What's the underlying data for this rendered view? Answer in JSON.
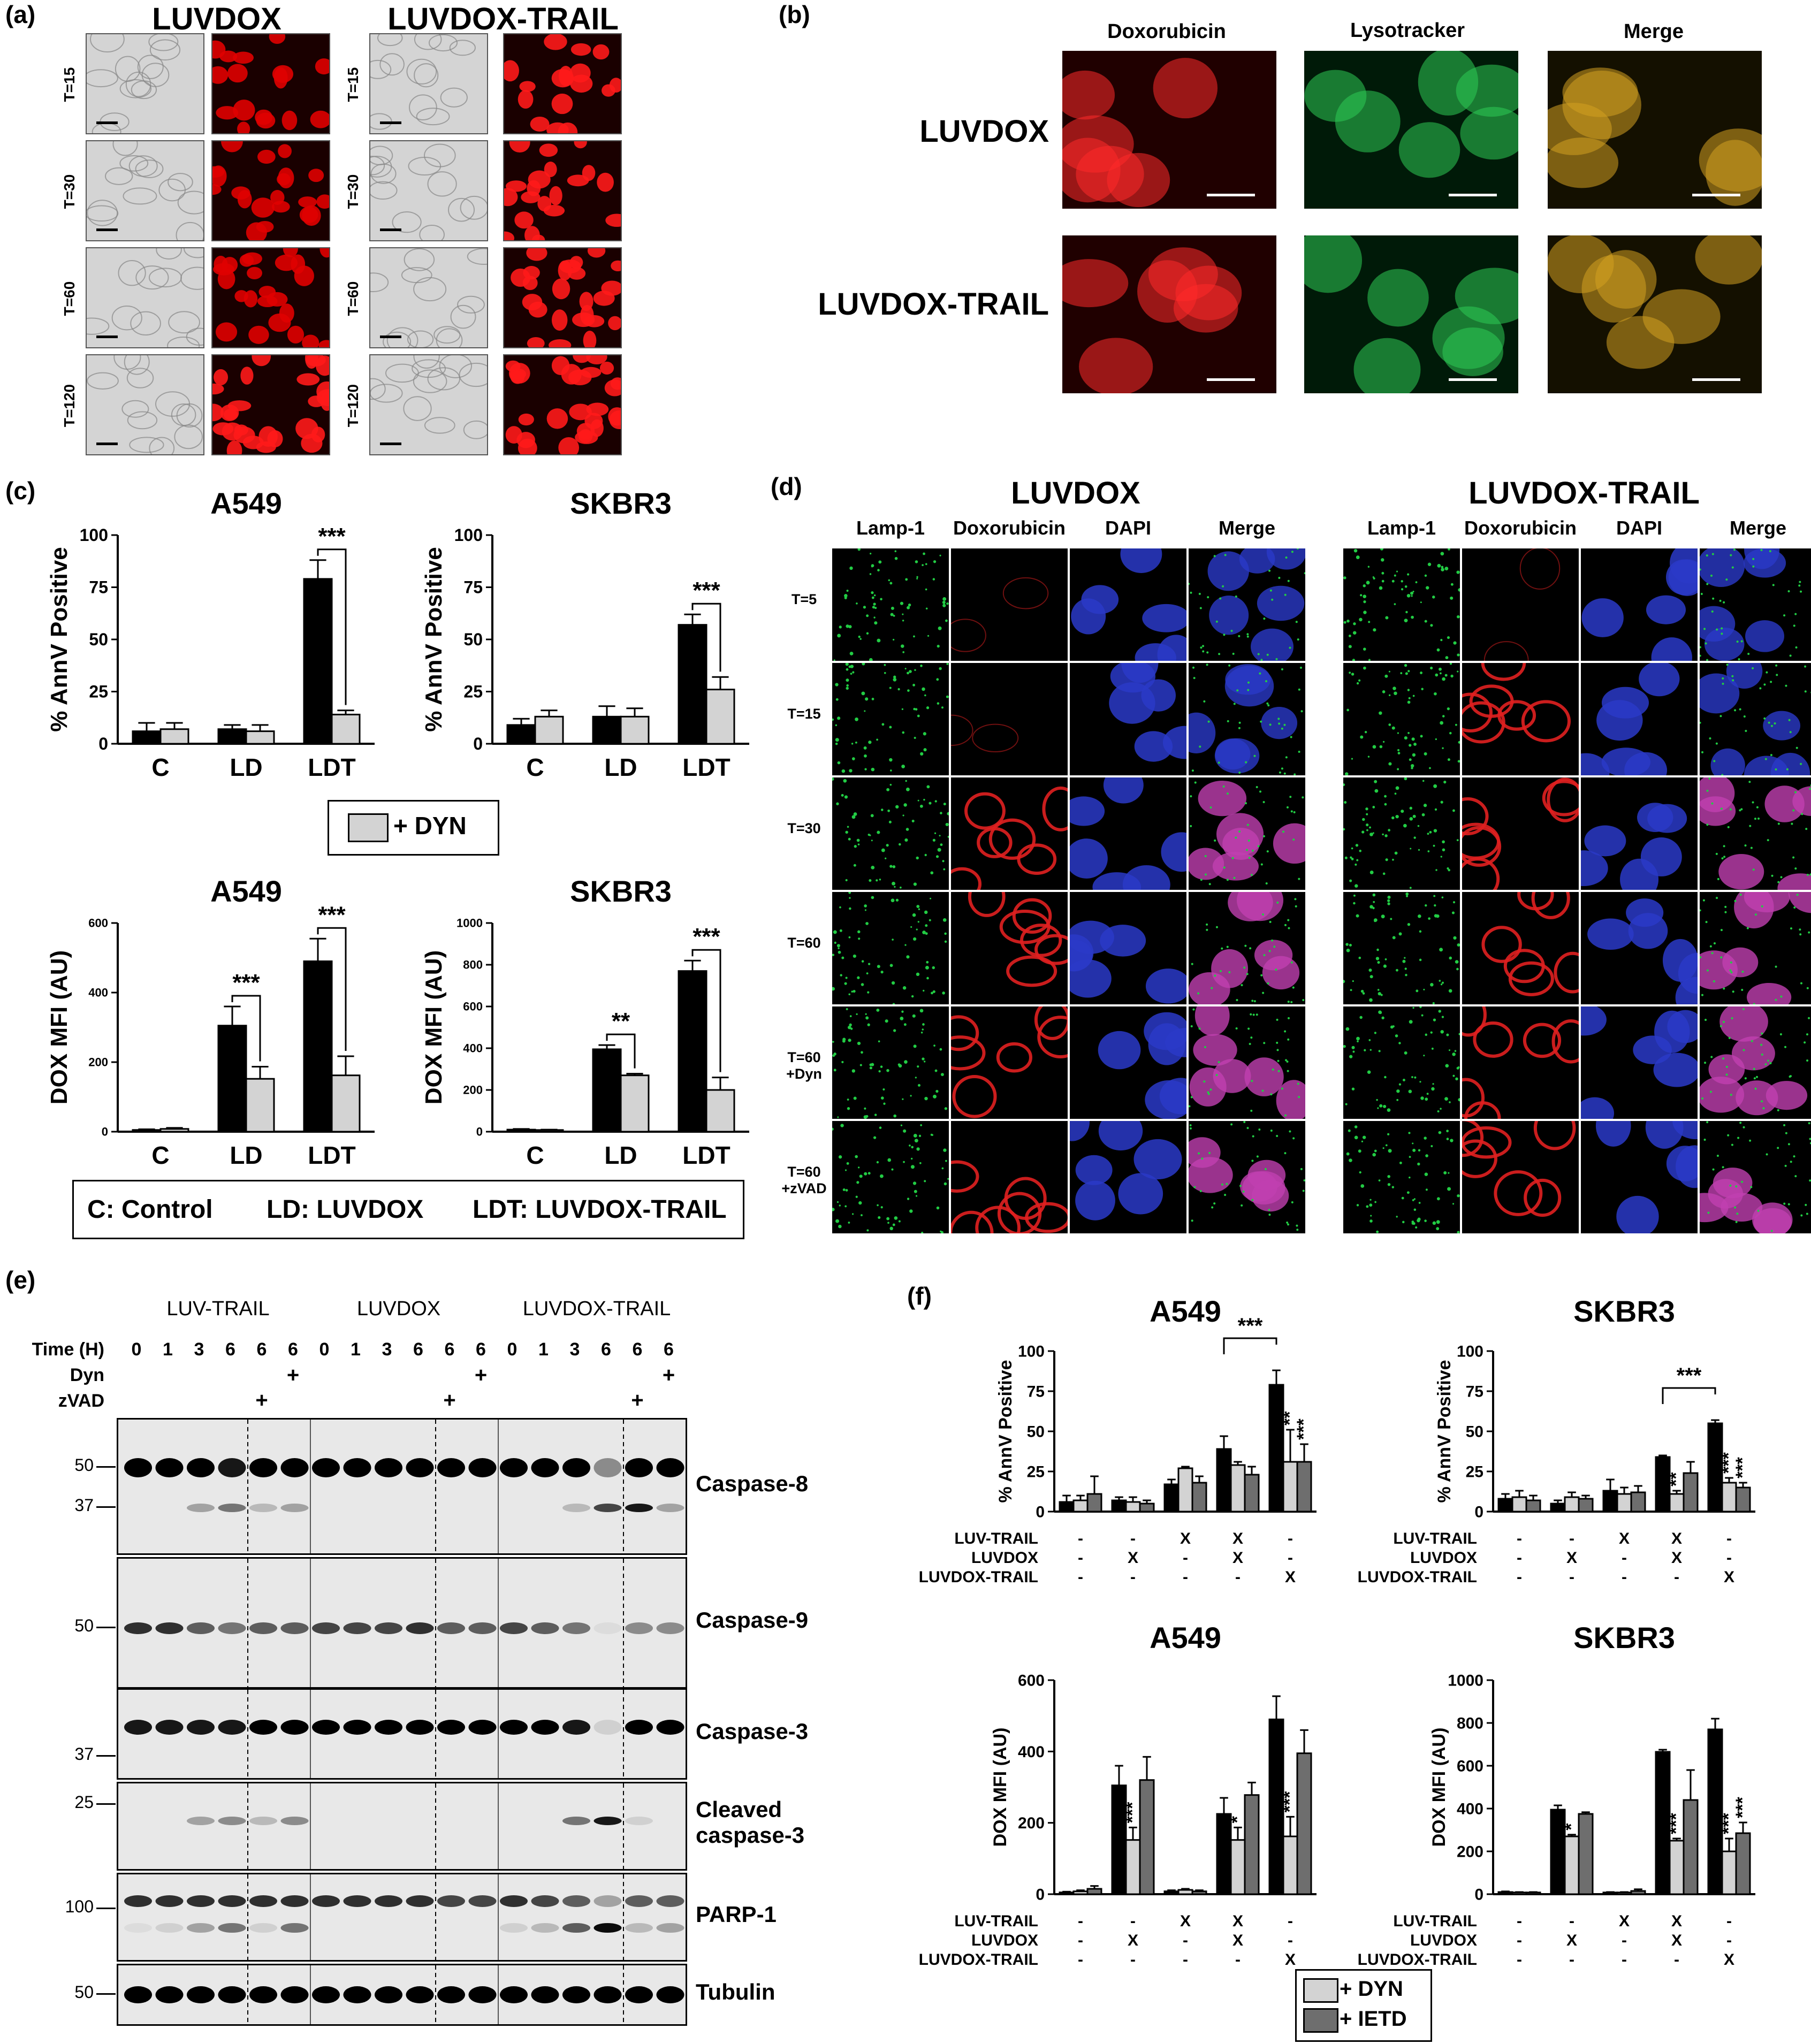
{
  "panels": {
    "a": {
      "label": "(a)",
      "groups": [
        "LUVDOX",
        "LUVDOX-TRAIL"
      ],
      "timepoints": [
        "T=15",
        "T=30",
        "T=60",
        "T=120"
      ]
    },
    "b": {
      "label": "(b)",
      "columns": [
        "Doxorubicin",
        "Lysotracker",
        "Merge"
      ],
      "rows": [
        "LUVDOX",
        "LUVDOX-TRAIL"
      ]
    },
    "c": {
      "label": "(c)",
      "legend": "+ DYN",
      "abbrev": {
        "c": "C: Control",
        "ld": "LD: LUVDOX",
        "ldt": "LDT: LUVDOX-TRAIL"
      }
    },
    "d": {
      "label": "(d)",
      "groups": [
        "LUVDOX",
        "LUVDOX-TRAIL"
      ],
      "columns": [
        "Lamp-1",
        "Doxorubicin",
        "DAPI",
        "Merge"
      ],
      "rows": [
        "T=5",
        "T=15",
        "T=30",
        "T=60",
        "T=60\n+Dyn",
        "T=60\n+zVAD"
      ]
    },
    "e": {
      "label": "(e)",
      "groups": [
        "LUV-TRAIL",
        "LUVDOX",
        "LUVDOX-TRAIL"
      ],
      "row_labels": [
        "Time (H)",
        "Dyn",
        "zVAD"
      ],
      "times": [
        "0",
        "1",
        "3",
        "6",
        "6",
        "6"
      ],
      "dyn": [
        "",
        "",
        "",
        "",
        "",
        "+"
      ],
      "zvad": [
        "",
        "",
        "",
        "",
        "+",
        ""
      ],
      "blots": [
        {
          "name": "Caspase-8",
          "markers": [
            "50",
            "37"
          ]
        },
        {
          "name": "Caspase-9",
          "markers": [
            "50"
          ]
        },
        {
          "name": "Caspase-3",
          "markers": [
            "37"
          ]
        },
        {
          "name": "Cleaved\ncaspase-3",
          "markers": [
            "25"
          ]
        },
        {
          "name": "PARP-1",
          "markers": [
            "100"
          ]
        },
        {
          "name": "Tubulin",
          "markers": [
            "50"
          ]
        }
      ]
    },
    "f": {
      "label": "(f)",
      "legend": [
        "+ DYN",
        "+ IETD"
      ],
      "cond_labels": [
        "LUV-TRAIL",
        "LUVDOX",
        "LUVDOX-TRAIL"
      ],
      "cond_marks": [
        [
          "-",
          "-",
          "X",
          "X",
          "-"
        ],
        [
          "-",
          "X",
          "-",
          "X",
          "-"
        ],
        [
          "-",
          "-",
          "-",
          "-",
          "X"
        ]
      ]
    }
  },
  "chart_data": [
    {
      "id": "c-annv-a549",
      "type": "bar",
      "title": "A549",
      "ylabel": "% AnnV Positive",
      "categories": [
        "C",
        "LD",
        "LDT"
      ],
      "ylim": [
        0,
        100
      ],
      "yticks": [
        0,
        25,
        50,
        75,
        100
      ],
      "series": [
        {
          "values": [
            6,
            7,
            79
          ],
          "errors": [
            4,
            2,
            9
          ],
          "color": "#000000"
        },
        {
          "name": "+ DYN",
          "values": [
            7,
            6,
            14
          ],
          "errors": [
            3,
            3,
            2
          ],
          "color": "#d3d3d3"
        }
      ],
      "annotations": [
        {
          "category": "LDT",
          "text": "***"
        }
      ]
    },
    {
      "id": "c-annv-skbr3",
      "type": "bar",
      "title": "SKBR3",
      "ylabel": "% AnnV Positive",
      "categories": [
        "C",
        "LD",
        "LDT"
      ],
      "ylim": [
        0,
        100
      ],
      "yticks": [
        0,
        25,
        50,
        75,
        100
      ],
      "series": [
        {
          "values": [
            9,
            13,
            57
          ],
          "errors": [
            3,
            5,
            5
          ],
          "color": "#000000"
        },
        {
          "name": "+ DYN",
          "values": [
            13,
            13,
            26
          ],
          "errors": [
            3,
            4,
            6
          ],
          "color": "#d3d3d3"
        }
      ],
      "annotations": [
        {
          "category": "LDT",
          "text": "***"
        }
      ]
    },
    {
      "id": "c-mfi-a549",
      "type": "bar",
      "title": "A549",
      "ylabel": "DOX MFI (AU)",
      "categories": [
        "C",
        "LD",
        "LDT"
      ],
      "ylim": [
        0,
        600
      ],
      "yticks": [
        0,
        200,
        400,
        600
      ],
      "series": [
        {
          "values": [
            5,
            305,
            490
          ],
          "errors": [
            2,
            55,
            65
          ],
          "color": "#000000"
        },
        {
          "name": "+ DYN",
          "values": [
            8,
            152,
            162
          ],
          "errors": [
            3,
            35,
            55
          ],
          "color": "#d3d3d3"
        }
      ],
      "annotations": [
        {
          "category": "LD",
          "text": "***"
        },
        {
          "category": "LDT",
          "text": "***"
        }
      ]
    },
    {
      "id": "c-mfi-skbr3",
      "type": "bar",
      "title": "SKBR3",
      "ylabel": "DOX MFI (AU)",
      "categories": [
        "C",
        "LD",
        "LDT"
      ],
      "ylim": [
        0,
        1000
      ],
      "yticks": [
        0,
        200,
        400,
        600,
        800,
        1000
      ],
      "series": [
        {
          "values": [
            10,
            395,
            770
          ],
          "errors": [
            3,
            20,
            50
          ],
          "color": "#000000"
        },
        {
          "name": "+ DYN",
          "values": [
            8,
            270,
            200
          ],
          "errors": [
            2,
            8,
            60
          ],
          "color": "#d3d3d3"
        }
      ],
      "annotations": [
        {
          "category": "LD",
          "text": "**"
        },
        {
          "category": "LDT",
          "text": "***"
        }
      ]
    },
    {
      "id": "f-annv-a549",
      "type": "bar",
      "title": "A549",
      "ylabel": "% AnnV Positive",
      "ylim": [
        0,
        100
      ],
      "yticks": [
        0,
        25,
        50,
        75,
        100
      ],
      "groups": 5,
      "series": [
        {
          "values": [
            6,
            7,
            17,
            39,
            79
          ],
          "errors": [
            4,
            2,
            3,
            8,
            9
          ],
          "color": "#000000"
        },
        {
          "name": "+ DYN",
          "values": [
            7,
            6,
            27,
            29,
            31
          ],
          "errors": [
            3,
            3,
            1,
            2,
            20
          ],
          "color": "#d3d3d3"
        },
        {
          "name": "+ IETD",
          "values": [
            11,
            5,
            18,
            23,
            31
          ],
          "errors": [
            11,
            2,
            4,
            5,
            11
          ],
          "color": "#6e6e6e"
        }
      ],
      "annotations": [
        {
          "group": 4,
          "series": 1,
          "text": "**"
        },
        {
          "group": 4,
          "series": 2,
          "text": "***"
        },
        {
          "bracket": [
            3,
            4
          ],
          "text": "***"
        }
      ]
    },
    {
      "id": "f-annv-skbr3",
      "type": "bar",
      "title": "SKBR3",
      "ylabel": "% AnnV Positive",
      "ylim": [
        0,
        100
      ],
      "yticks": [
        0,
        25,
        50,
        75,
        100
      ],
      "groups": 5,
      "series": [
        {
          "values": [
            8,
            5,
            13,
            34,
            55
          ],
          "errors": [
            3,
            2,
            7,
            1,
            2
          ],
          "color": "#000000"
        },
        {
          "name": "+ DYN",
          "values": [
            9,
            9,
            11,
            11,
            18
          ],
          "errors": [
            4,
            3,
            4,
            2,
            3
          ],
          "color": "#d3d3d3"
        },
        {
          "name": "+ IETD",
          "values": [
            7,
            8,
            12,
            24,
            15
          ],
          "errors": [
            3,
            2,
            4,
            7,
            3
          ],
          "color": "#6e6e6e"
        }
      ],
      "annotations": [
        {
          "group": 3,
          "series": 1,
          "text": "**"
        },
        {
          "group": 4,
          "series": 1,
          "text": "***"
        },
        {
          "group": 4,
          "series": 2,
          "text": "***"
        },
        {
          "bracket": [
            3,
            4
          ],
          "text": "***"
        }
      ]
    },
    {
      "id": "f-mfi-a549",
      "type": "bar",
      "title": "A549",
      "ylabel": "DOX MFI (AU)",
      "ylim": [
        0,
        600
      ],
      "yticks": [
        0,
        200,
        400,
        600
      ],
      "groups": 5,
      "series": [
        {
          "values": [
            5,
            305,
            8,
            225,
            490
          ],
          "errors": [
            2,
            55,
            3,
            45,
            65
          ],
          "color": "#000000"
        },
        {
          "name": "+ DYN",
          "values": [
            8,
            152,
            12,
            152,
            162
          ],
          "errors": [
            3,
            35,
            3,
            35,
            55
          ],
          "color": "#d3d3d3"
        },
        {
          "name": "+ IETD",
          "values": [
            15,
            320,
            8,
            278,
            395
          ],
          "errors": [
            8,
            65,
            3,
            35,
            65
          ],
          "color": "#6e6e6e"
        }
      ],
      "annotations": [
        {
          "group": 1,
          "series": 1,
          "text": "***"
        },
        {
          "group": 3,
          "series": 1,
          "text": "*"
        },
        {
          "group": 4,
          "series": 1,
          "text": "***"
        }
      ]
    },
    {
      "id": "f-mfi-skbr3",
      "type": "bar",
      "title": "SKBR3",
      "ylabel": "DOX MFI (AU)",
      "ylim": [
        0,
        1000
      ],
      "yticks": [
        0,
        200,
        400,
        600,
        800,
        1000
      ],
      "groups": 5,
      "series": [
        {
          "values": [
            10,
            395,
            8,
            665,
            770
          ],
          "errors": [
            3,
            20,
            2,
            10,
            50
          ],
          "color": "#000000"
        },
        {
          "name": "+ DYN",
          "values": [
            8,
            270,
            8,
            250,
            200
          ],
          "errors": [
            2,
            8,
            2,
            10,
            60
          ],
          "color": "#d3d3d3"
        },
        {
          "name": "+ IETD",
          "values": [
            8,
            375,
            15,
            440,
            285
          ],
          "errors": [
            2,
            8,
            8,
            140,
            50
          ],
          "color": "#6e6e6e"
        }
      ],
      "annotations": [
        {
          "group": 1,
          "series": 1,
          "text": "*"
        },
        {
          "group": 3,
          "series": 1,
          "text": "***"
        },
        {
          "group": 4,
          "series": 1,
          "text": "***"
        },
        {
          "group": 4,
          "series": 2,
          "text": "***"
        }
      ]
    }
  ]
}
